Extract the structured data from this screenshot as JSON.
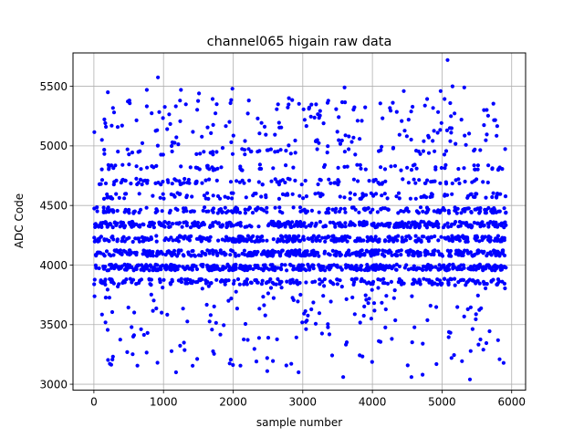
{
  "chart_data": {
    "type": "scatter",
    "title": "channel065 higain raw data",
    "xlabel": "sample number",
    "ylabel": "ADC Code",
    "xlim": [
      -300,
      6200
    ],
    "ylim": [
      2950,
      5780
    ],
    "x_ticks": [
      0,
      1000,
      2000,
      3000,
      4000,
      5000,
      6000
    ],
    "y_ticks": [
      3000,
      3500,
      4000,
      4500,
      5000,
      5500
    ],
    "grid": true,
    "marker_color": "#0000ff",
    "series": [
      {
        "x_range": [
          0,
          5920
        ],
        "n_points": 5920,
        "description_levels": [
          3860,
          3980,
          4100,
          4220,
          4340,
          4460,
          4580,
          4700,
          4820,
          4950
        ],
        "highlighted_points": [
          [
            5080,
            5720
          ],
          [
            920,
            5575
          ],
          [
            3600,
            5490
          ],
          [
            5150,
            5500
          ],
          [
            5320,
            5490
          ],
          [
            1990,
            5480
          ],
          [
            760,
            5470
          ],
          [
            1250,
            5470
          ],
          [
            4450,
            5460
          ],
          [
            200,
            5450
          ],
          [
            1510,
            5440
          ],
          [
            4980,
            5460
          ],
          [
            2800,
            5400
          ],
          [
            5400,
            3040
          ],
          [
            3580,
            3060
          ],
          [
            1180,
            3100
          ],
          [
            4720,
            3080
          ],
          [
            4560,
            3060
          ],
          [
            2490,
            3110
          ],
          [
            2940,
            3100
          ]
        ]
      }
    ]
  }
}
